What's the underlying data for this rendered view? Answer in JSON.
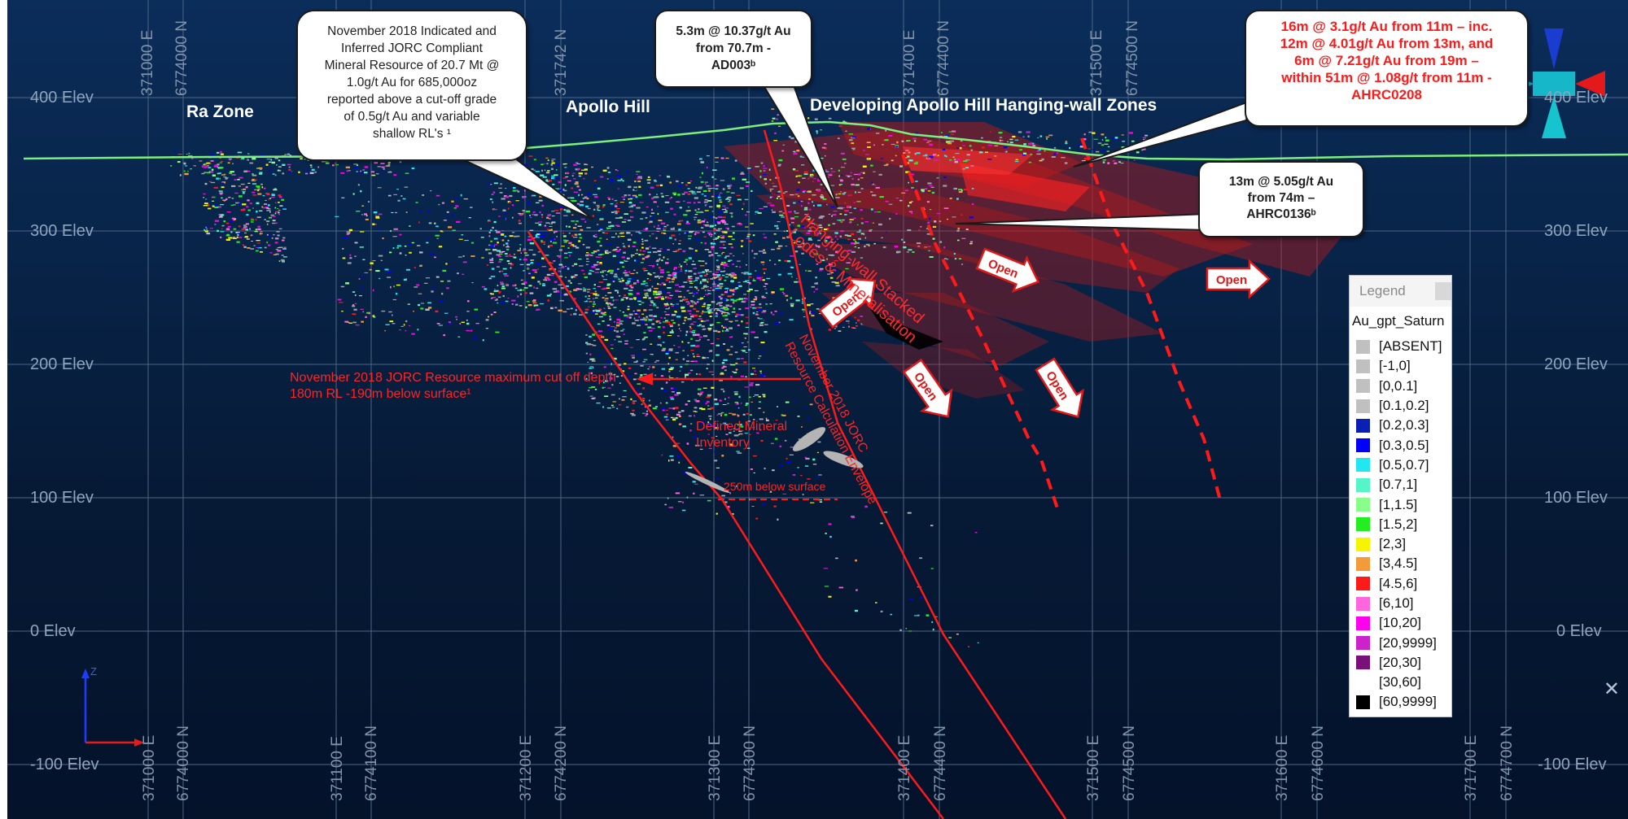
{
  "elevations": [
    "400 Elev",
    "300 Elev",
    "200 Elev",
    "100 Elev",
    "0 Elev",
    "-100 Elev"
  ],
  "coords_top": [
    "371000 E",
    "6774000 N",
    "371742 N",
    "371400 E",
    "6774400 N",
    "371500 E",
    "6774500 N"
  ],
  "coords_bottom": [
    "371000 E",
    "6774000 N",
    "371100 E",
    "6774100 N",
    "371200 E",
    "6774200 N",
    "371300 E",
    "6774300 N",
    "371400 E",
    "6774400 N",
    "371500 E",
    "6774500 N",
    "371600 E",
    "6774600 N",
    "371700 E",
    "6774700 N"
  ],
  "zones": {
    "ra": "Ra Zone",
    "apollo": "Apollo Hill",
    "hanging": "Developing Apollo Hill Hanging-wall Zones"
  },
  "callouts": {
    "resource": [
      "November 2018 Indicated and",
      "Inferred JORC Compliant",
      "Mineral Resource of 20.7 Mt @",
      "1.0g/t Au for 685,000oz",
      "reported above a cut-off grade",
      "of 0.5g/t Au and variable",
      "shallow RL's  ¹"
    ],
    "ad003": [
      "5.3m @ 10.37g/t Au",
      "from 70.7m  -",
      "AD003ᵇ"
    ],
    "ahrc0208": [
      "16m @ 3.1g/t Au from 11m – inc.",
      "12m @ 4.01g/t Au from 13m, and",
      "6m @ 7.21g/t Au from 19m –",
      "within 51m @ 1.08g/t from 11m -",
      "AHRC0208"
    ],
    "ahrc0136": [
      "13m @ 5.05g/t Au",
      "from  74m –",
      "AHRC0136ᵇ"
    ]
  },
  "annotations": {
    "cutoff_line1": "November 2018 JORC Resource maximum cut off depth",
    "cutoff_line2": "180m RL  -190m below surface¹",
    "mineral1": "Defined Mineral",
    "mineral2": "Inventory",
    "below250": "250m below surface",
    "envelope1": "November 2018 JORC",
    "envelope2": "Resource Calculation Envelope",
    "stacked1": "Hanging-wall Stacked",
    "stacked2": "Lodes & Mineralisation"
  },
  "open_label": "Open",
  "legend": {
    "title": "Legend",
    "field": "Au_gpt_Saturn",
    "items": [
      {
        "label": "[ABSENT]",
        "color": "#c0c0c0"
      },
      {
        "label": "[-1,0]",
        "color": "#c0c0c0"
      },
      {
        "label": "[0,0.1]",
        "color": "#c0c0c0"
      },
      {
        "label": "[0.1,0.2]",
        "color": "#c0c0c0"
      },
      {
        "label": "[0.2,0.3]",
        "color": "#0a1fb4"
      },
      {
        "label": "[0.3,0.5]",
        "color": "#0000ff"
      },
      {
        "label": "[0.5,0.7]",
        "color": "#22e6f0"
      },
      {
        "label": "[0.7,1]",
        "color": "#55f5c8"
      },
      {
        "label": "[1,1.5]",
        "color": "#88ff88"
      },
      {
        "label": "[1.5,2]",
        "color": "#22ee22"
      },
      {
        "label": "[2,3]",
        "color": "#f5f500"
      },
      {
        "label": "[3,4.5]",
        "color": "#f59a3a"
      },
      {
        "label": "[4.5,6]",
        "color": "#ff1a1a"
      },
      {
        "label": "[6,10]",
        "color": "#ff66dd"
      },
      {
        "label": "[10,20]",
        "color": "#ff00ee"
      },
      {
        "label": "[20,9999]",
        "color": "#cc22cc"
      },
      {
        "label": "[20,30]",
        "color": "#7a117a"
      },
      {
        "label": "[30,60]",
        "color": "#ffffff"
      },
      {
        "label": "[60,9999]",
        "color": "#000000"
      }
    ]
  },
  "axis_labels": {
    "z": "Z"
  },
  "close_glyph": "✕"
}
